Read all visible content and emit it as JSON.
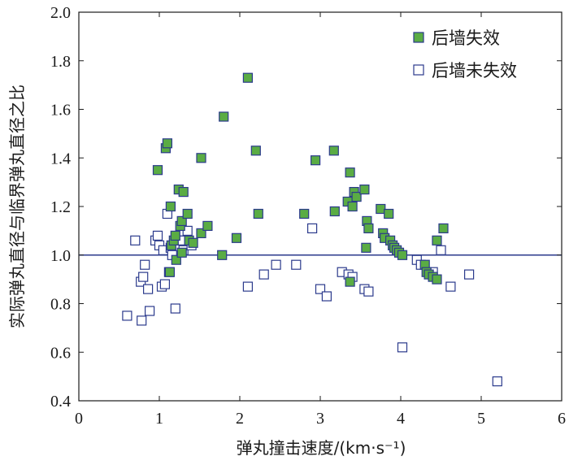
{
  "chart_data": {
    "type": "scatter",
    "xlabel": "弹丸撞击速度/(km·s⁻¹)",
    "ylabel": "实际弹丸直径与临界弹丸直径之比",
    "xlim": [
      0,
      6
    ],
    "ylim": [
      0.4,
      2.0
    ],
    "xticks": [
      "0",
      "1",
      "2",
      "3",
      "4",
      "5",
      "6"
    ],
    "yticks": [
      "0.4",
      "0.6",
      "0.8",
      "1.0",
      "1.2",
      "1.4",
      "1.6",
      "1.8",
      "2.0"
    ],
    "reference_line": {
      "y": 1.0,
      "color": "#2b3a8c"
    },
    "legend_position": "top-right",
    "grid": false,
    "series": [
      {
        "name": "后墙失效",
        "marker": "filled-square",
        "color": "#5aac44",
        "edge_color": "#2b3a8c",
        "points": [
          [
            0.98,
            1.35
          ],
          [
            1.08,
            1.44
          ],
          [
            1.1,
            1.46
          ],
          [
            1.14,
            1.2
          ],
          [
            1.13,
            0.93
          ],
          [
            1.15,
            1.04
          ],
          [
            1.18,
            1.06
          ],
          [
            1.2,
            1.08
          ],
          [
            1.21,
            0.98
          ],
          [
            1.24,
            1.27
          ],
          [
            1.26,
            1.12
          ],
          [
            1.28,
            1.14
          ],
          [
            1.3,
            1.26
          ],
          [
            1.28,
            1.01
          ],
          [
            1.35,
            1.17
          ],
          [
            1.37,
            1.06
          ],
          [
            1.42,
            1.05
          ],
          [
            1.52,
            1.4
          ],
          [
            1.52,
            1.09
          ],
          [
            1.6,
            1.12
          ],
          [
            1.78,
            1.0
          ],
          [
            1.8,
            1.57
          ],
          [
            1.96,
            1.07
          ],
          [
            2.1,
            1.73
          ],
          [
            2.2,
            1.43
          ],
          [
            2.23,
            1.17
          ],
          [
            2.8,
            1.17
          ],
          [
            2.94,
            1.39
          ],
          [
            3.17,
            1.43
          ],
          [
            3.18,
            1.18
          ],
          [
            3.34,
            1.22
          ],
          [
            3.37,
            1.34
          ],
          [
            3.37,
            0.89
          ],
          [
            3.4,
            1.2
          ],
          [
            3.42,
            1.26
          ],
          [
            3.45,
            1.24
          ],
          [
            3.55,
            1.27
          ],
          [
            3.57,
            1.03
          ],
          [
            3.58,
            1.14
          ],
          [
            3.6,
            1.11
          ],
          [
            3.75,
            1.19
          ],
          [
            3.78,
            1.09
          ],
          [
            3.8,
            1.07
          ],
          [
            3.85,
            1.17
          ],
          [
            3.87,
            1.06
          ],
          [
            3.9,
            1.04
          ],
          [
            3.92,
            1.03
          ],
          [
            3.95,
            1.02
          ],
          [
            3.98,
            1.01
          ],
          [
            4.02,
            1.0
          ],
          [
            4.3,
            0.96
          ],
          [
            4.32,
            0.93
          ],
          [
            4.35,
            0.92
          ],
          [
            4.4,
            0.91
          ],
          [
            4.45,
            0.9
          ],
          [
            4.45,
            1.06
          ],
          [
            4.53,
            1.11
          ]
        ]
      },
      {
        "name": "后墙未失效",
        "marker": "open-square",
        "color": "#ffffff",
        "edge_color": "#2b3a8c",
        "points": [
          [
            0.6,
            0.75
          ],
          [
            0.7,
            1.06
          ],
          [
            0.77,
            0.89
          ],
          [
            0.78,
            0.73
          ],
          [
            0.8,
            0.91
          ],
          [
            0.82,
            0.96
          ],
          [
            0.86,
            0.86
          ],
          [
            0.88,
            0.77
          ],
          [
            0.95,
            1.06
          ],
          [
            0.98,
            1.08
          ],
          [
            1.0,
            1.04
          ],
          [
            1.03,
            0.87
          ],
          [
            1.05,
            1.02
          ],
          [
            1.07,
            0.88
          ],
          [
            1.1,
            1.17
          ],
          [
            1.12,
            0.93
          ],
          [
            1.14,
            1.03
          ],
          [
            1.16,
            1.0
          ],
          [
            1.2,
            0.78
          ],
          [
            1.25,
            1.06
          ],
          [
            1.28,
            1.06
          ],
          [
            1.3,
            1.02
          ],
          [
            1.35,
            1.1
          ],
          [
            1.4,
            1.04
          ],
          [
            2.1,
            0.87
          ],
          [
            2.3,
            0.92
          ],
          [
            2.45,
            0.96
          ],
          [
            2.7,
            0.96
          ],
          [
            2.9,
            1.11
          ],
          [
            3.0,
            0.86
          ],
          [
            3.08,
            0.83
          ],
          [
            3.27,
            0.93
          ],
          [
            3.35,
            0.92
          ],
          [
            3.4,
            0.91
          ],
          [
            3.55,
            0.86
          ],
          [
            3.6,
            0.85
          ],
          [
            4.02,
            0.62
          ],
          [
            4.2,
            0.98
          ],
          [
            4.25,
            0.96
          ],
          [
            4.4,
            0.93
          ],
          [
            4.5,
            1.02
          ],
          [
            4.62,
            0.87
          ],
          [
            4.85,
            0.92
          ],
          [
            5.2,
            0.48
          ]
        ]
      }
    ]
  }
}
